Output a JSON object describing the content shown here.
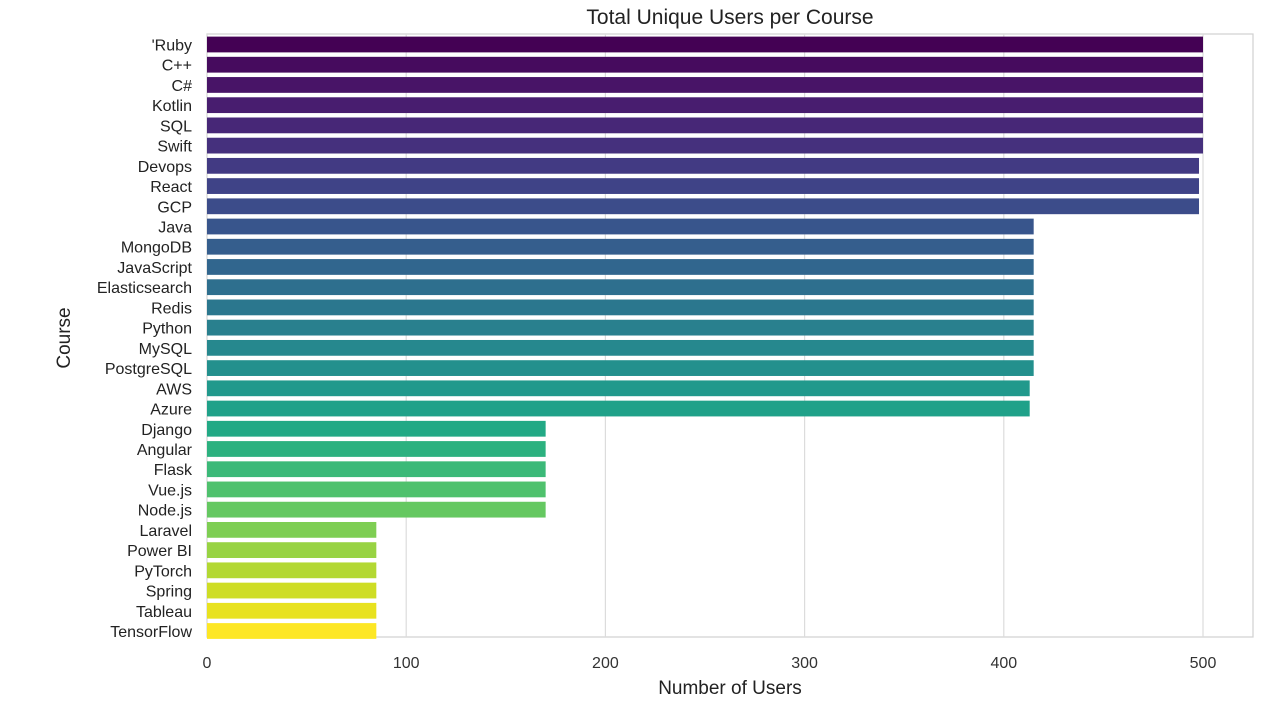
{
  "chart_data": {
    "type": "bar",
    "orientation": "horizontal",
    "title": "Total Unique Users per Course",
    "xlabel": "Number of Users",
    "ylabel": "Course",
    "xlim": [
      0,
      525
    ],
    "xticks": [
      0,
      100,
      200,
      300,
      400,
      500
    ],
    "grid": "vertical",
    "palette": "viridis",
    "categories": [
      "'Ruby",
      "C++",
      "C#",
      "Kotlin",
      "SQL",
      "Swift",
      "Devops",
      "React",
      "GCP",
      "Java",
      "MongoDB",
      "JavaScript",
      "Elasticsearch",
      "Redis",
      "Python",
      "MySQL",
      "PostgreSQL",
      "AWS",
      "Azure",
      "Django",
      "Angular",
      "Flask",
      "Vue.js",
      "Node.js",
      "Laravel",
      "Power BI",
      "PyTorch",
      "Spring",
      "Tableau",
      "TensorFlow"
    ],
    "values": [
      500,
      500,
      500,
      500,
      500,
      500,
      498,
      498,
      498,
      415,
      415,
      415,
      415,
      415,
      415,
      415,
      415,
      413,
      413,
      170,
      170,
      170,
      170,
      170,
      85,
      85,
      85,
      85,
      85,
      85
    ],
    "colors": [
      "#440154",
      "#460b5e",
      "#481467",
      "#481d6f",
      "#472777",
      "#45307d",
      "#423a83",
      "#3f4387",
      "#3c4c8a",
      "#38558c",
      "#355e8d",
      "#31668e",
      "#2e6f8e",
      "#2b778e",
      "#29808e",
      "#26888e",
      "#23908d",
      "#21998c",
      "#1fa189",
      "#22a985",
      "#2cb17f",
      "#3bb978",
      "#4fc16d",
      "#65c861",
      "#7ece53",
      "#98d343",
      "#b3d833",
      "#cedd25",
      "#e8e21f",
      "#fde725"
    ]
  }
}
